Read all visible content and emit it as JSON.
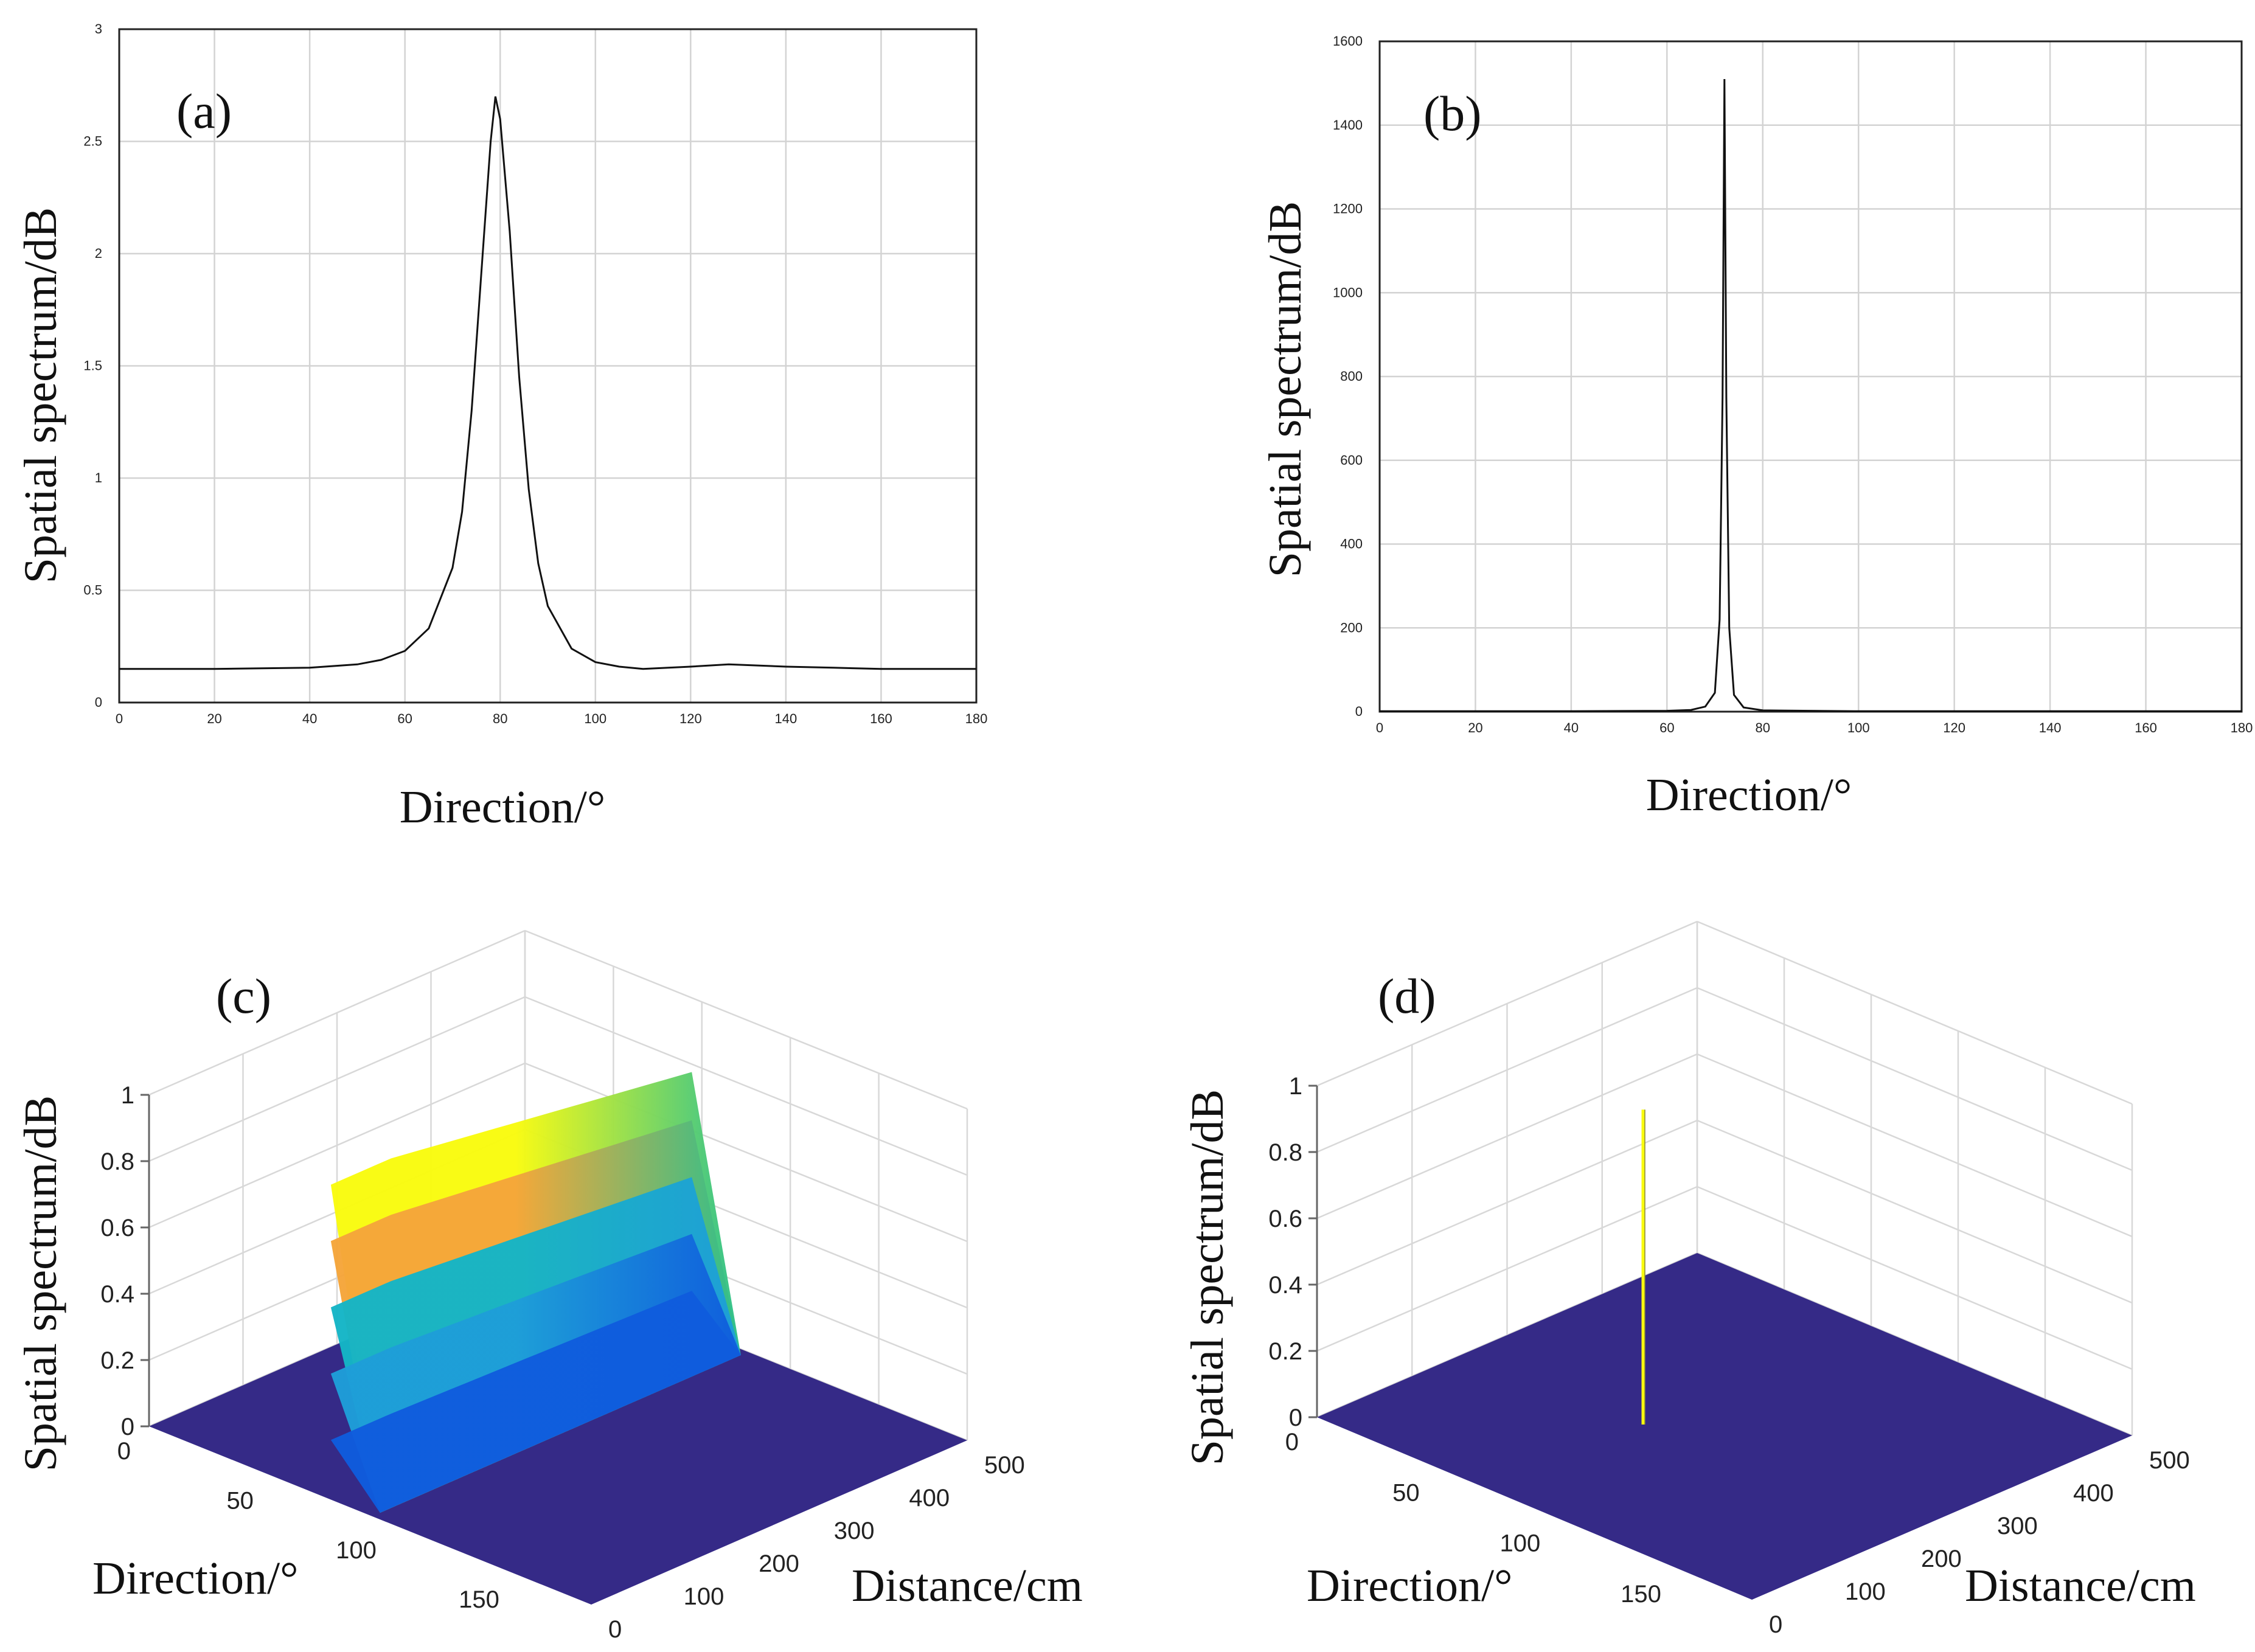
{
  "chart_data": [
    {
      "id": "a",
      "type": "line",
      "panel_label": "(a)",
      "xlabel": "Direction/°",
      "ylabel": "Spatial spectrum/dB",
      "xlim": [
        0,
        180
      ],
      "ylim": [
        0,
        3
      ],
      "xticks": [
        0,
        20,
        40,
        60,
        80,
        100,
        120,
        140,
        160,
        180
      ],
      "yticks": [
        0,
        0.5,
        1,
        1.5,
        2,
        2.5,
        3
      ],
      "ytick_labels": [
        "0",
        "0.5",
        "1",
        "1.5",
        "2",
        "2.5",
        "3"
      ],
      "grid": true,
      "series": [
        {
          "name": "spectrum",
          "x": [
            0,
            20,
            40,
            50,
            55,
            60,
            65,
            70,
            72,
            74,
            76,
            78,
            79,
            80,
            82,
            84,
            86,
            88,
            90,
            95,
            100,
            105,
            110,
            120,
            128,
            140,
            150,
            160,
            170,
            180
          ],
          "y": [
            0.15,
            0.15,
            0.155,
            0.17,
            0.19,
            0.23,
            0.33,
            0.6,
            0.85,
            1.3,
            1.9,
            2.5,
            2.7,
            2.6,
            2.1,
            1.45,
            0.95,
            0.62,
            0.43,
            0.24,
            0.18,
            0.16,
            0.15,
            0.16,
            0.17,
            0.16,
            0.155,
            0.15,
            0.15,
            0.15
          ]
        }
      ]
    },
    {
      "id": "b",
      "type": "line",
      "panel_label": "(b)",
      "xlabel": "Direction/°",
      "ylabel": "Spatial spectrum/dB",
      "xlim": [
        0,
        180
      ],
      "ylim": [
        0,
        1600
      ],
      "xticks": [
        0,
        20,
        40,
        60,
        80,
        100,
        120,
        140,
        160,
        180
      ],
      "yticks": [
        0,
        200,
        400,
        600,
        800,
        1000,
        1200,
        1400,
        1600
      ],
      "ytick_labels": [
        "0",
        "200",
        "400",
        "600",
        "800",
        "1000",
        "1200",
        "1400",
        "1600"
      ],
      "grid": true,
      "series": [
        {
          "name": "spectrum",
          "x": [
            0,
            40,
            60,
            65,
            68,
            70,
            71,
            71.6,
            72,
            72.4,
            73,
            74,
            76,
            80,
            100,
            140,
            180
          ],
          "y": [
            1,
            1,
            2,
            4,
            12,
            45,
            220,
            750,
            1510,
            750,
            200,
            40,
            10,
            3,
            1,
            1,
            1
          ]
        }
      ]
    },
    {
      "id": "c",
      "type": "surface",
      "panel_label": "(c)",
      "xlabel": "Direction/°",
      "ylabel": "Distance/cm",
      "zlabel": "Spatial spectrum/dB",
      "direction_ticks": [
        "0",
        "50",
        "100",
        "150"
      ],
      "distance_ticks": [
        "0",
        "100",
        "200",
        "300",
        "400",
        "500"
      ],
      "z_ticks": [
        "0",
        "0.2",
        "0.4",
        "0.6",
        "0.8",
        "1"
      ],
      "zlim": [
        0,
        1
      ],
      "peak_direction": 80,
      "peak_value": 0.95,
      "colormap": [
        "#352a87",
        "#0f5cdd",
        "#1e9ed8",
        "#14b5c6",
        "#2cc08c",
        "#f5a53a",
        "#f9d22b",
        "#f9fb0e"
      ]
    },
    {
      "id": "d",
      "type": "surface",
      "panel_label": "(d)",
      "xlabel": "Direction/°",
      "ylabel": "Distance/cm",
      "zlabel": "Spatial spectrum/dB",
      "direction_ticks": [
        "0",
        "50",
        "100",
        "150"
      ],
      "distance_ticks": [
        "0",
        "100",
        "200",
        "300",
        "400",
        "500"
      ],
      "z_ticks": [
        "0",
        "0.2",
        "0.4",
        "0.6",
        "0.8",
        "1"
      ],
      "zlim": [
        0,
        1
      ],
      "peak_direction": 72,
      "peak_value": 0.95,
      "floor_color": "#352a87",
      "spike_color": "#f9fb0e"
    }
  ]
}
